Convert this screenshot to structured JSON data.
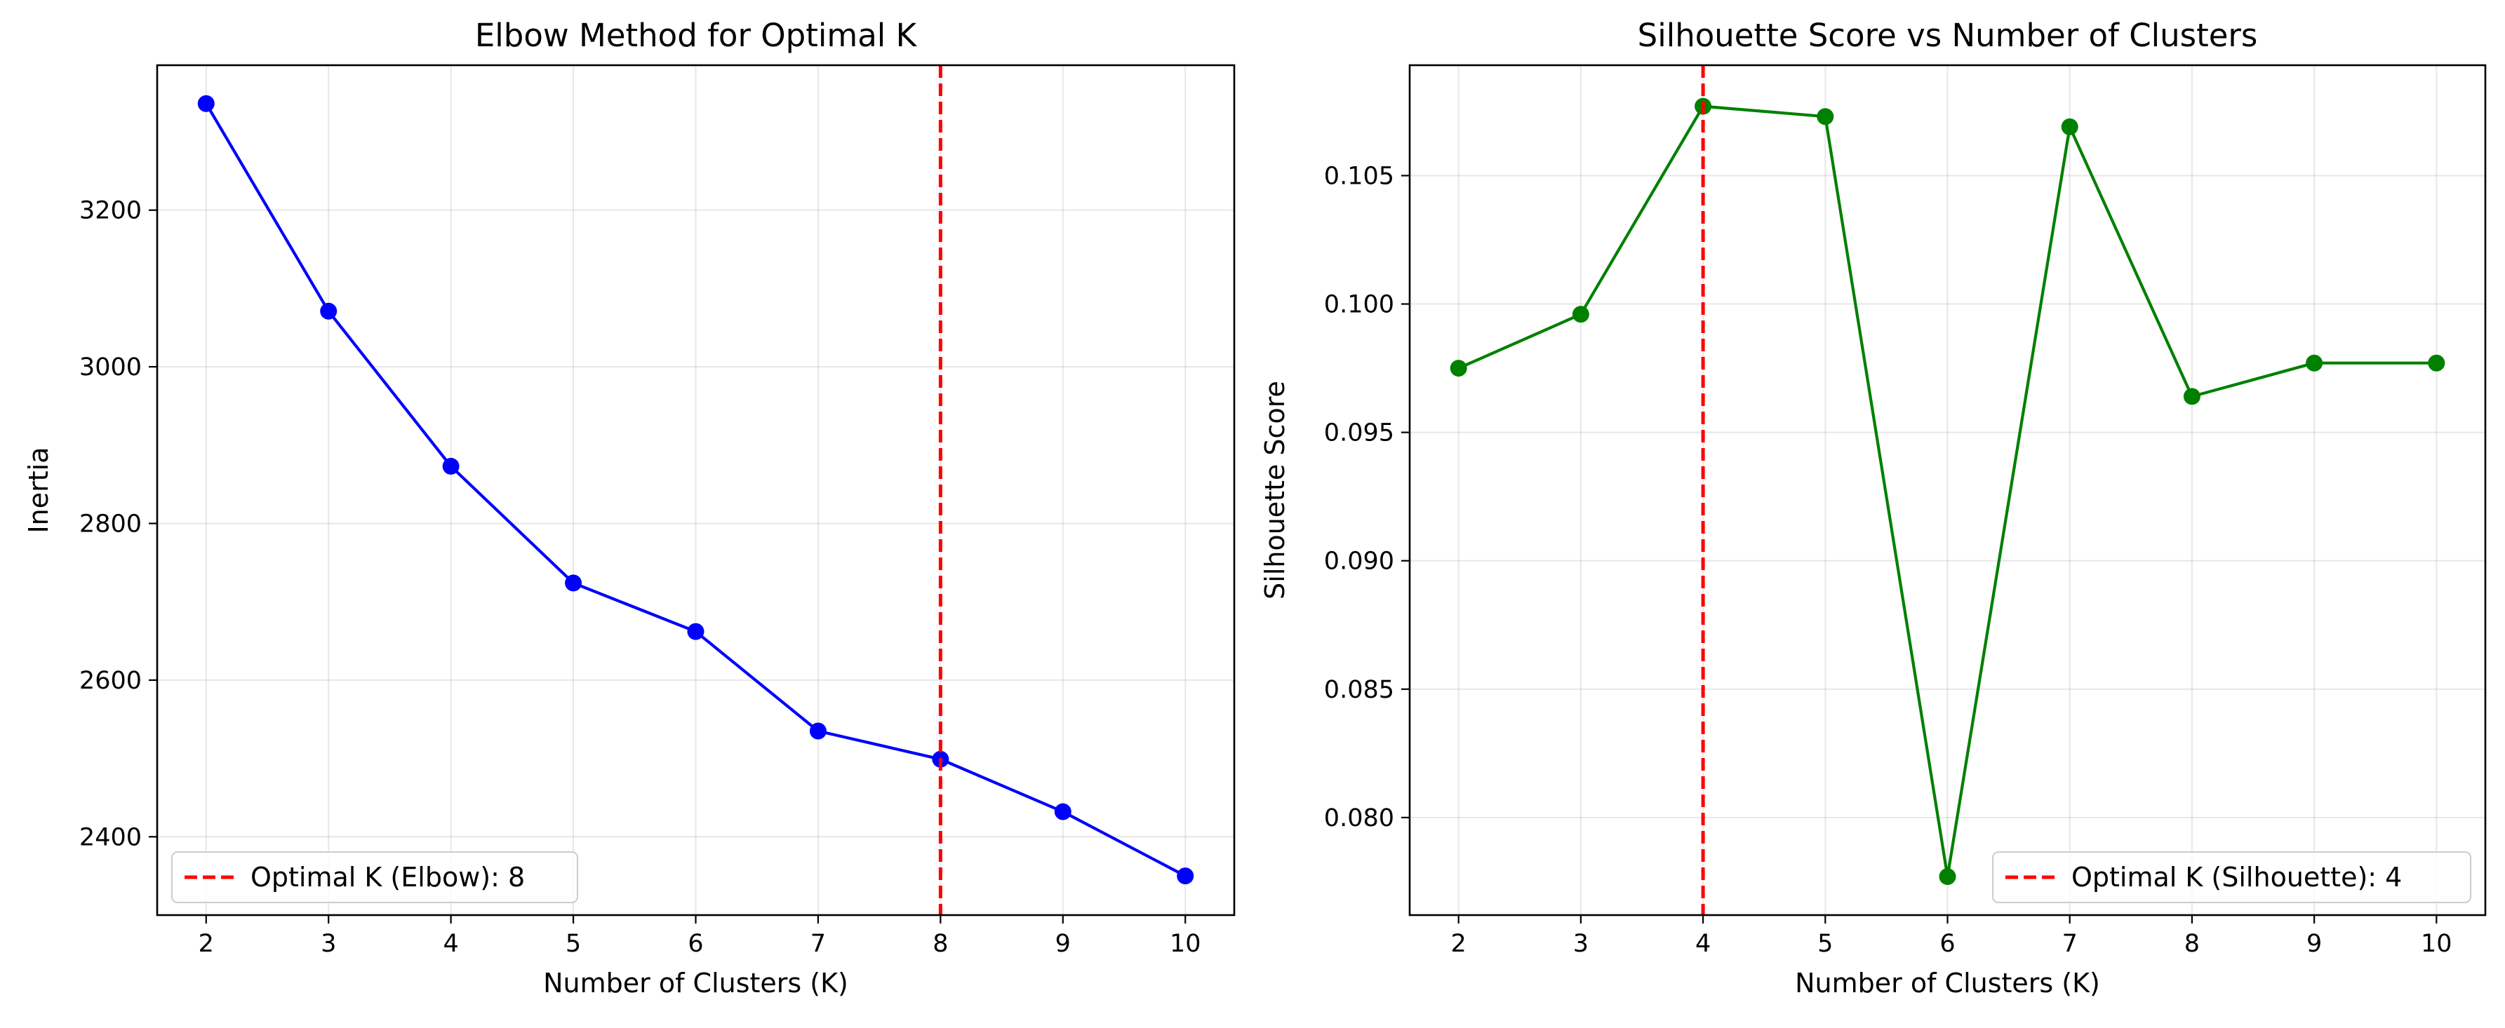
{
  "chart_data": [
    {
      "type": "line",
      "title": "Elbow Method for Optimal K",
      "xlabel": "Number of Clusters (K)",
      "ylabel": "Inertia",
      "x": [
        2,
        3,
        4,
        5,
        6,
        7,
        8,
        9,
        10
      ],
      "series": [
        {
          "values": [
            3336,
            3071,
            2873,
            2724,
            2662,
            2535,
            2499,
            2432,
            2350
          ],
          "color": "#0000ff",
          "marker": "circle"
        }
      ],
      "xlim": [
        1.6,
        10.4
      ],
      "ylim": [
        2300,
        3385
      ],
      "xticks": [
        2,
        3,
        4,
        5,
        6,
        7,
        8,
        9,
        10
      ],
      "yticks": [
        2400,
        2600,
        2800,
        3000,
        3200
      ],
      "ytick_decimals": 0,
      "grid": true,
      "vline": {
        "x": 8,
        "color": "#ff0000",
        "style": "dashed"
      },
      "legend": {
        "position": "lower-left",
        "entries": [
          "Optimal K (Elbow): 8"
        ]
      }
    },
    {
      "type": "line",
      "title": "Silhouette Score vs Number of Clusters",
      "xlabel": "Number of Clusters (K)",
      "ylabel": "Silhouette Score",
      "x": [
        2,
        3,
        4,
        5,
        6,
        7,
        8,
        9,
        10
      ],
      "series": [
        {
          "values": [
            0.0975,
            0.0996,
            0.1077,
            0.1073,
            0.0777,
            0.1069,
            0.0964,
            0.0977,
            0.0977
          ],
          "color": "#008000",
          "marker": "circle"
        }
      ],
      "xlim": [
        1.6,
        10.4
      ],
      "ylim": [
        0.0762,
        0.1093
      ],
      "xticks": [
        2,
        3,
        4,
        5,
        6,
        7,
        8,
        9,
        10
      ],
      "yticks": [
        0.08,
        0.085,
        0.09,
        0.095,
        0.1,
        0.105
      ],
      "ytick_decimals": 3,
      "grid": true,
      "vline": {
        "x": 4,
        "color": "#ff0000",
        "style": "dashed"
      },
      "legend": {
        "position": "lower-right",
        "entries": [
          "Optimal K (Silhouette): 4"
        ]
      }
    }
  ]
}
